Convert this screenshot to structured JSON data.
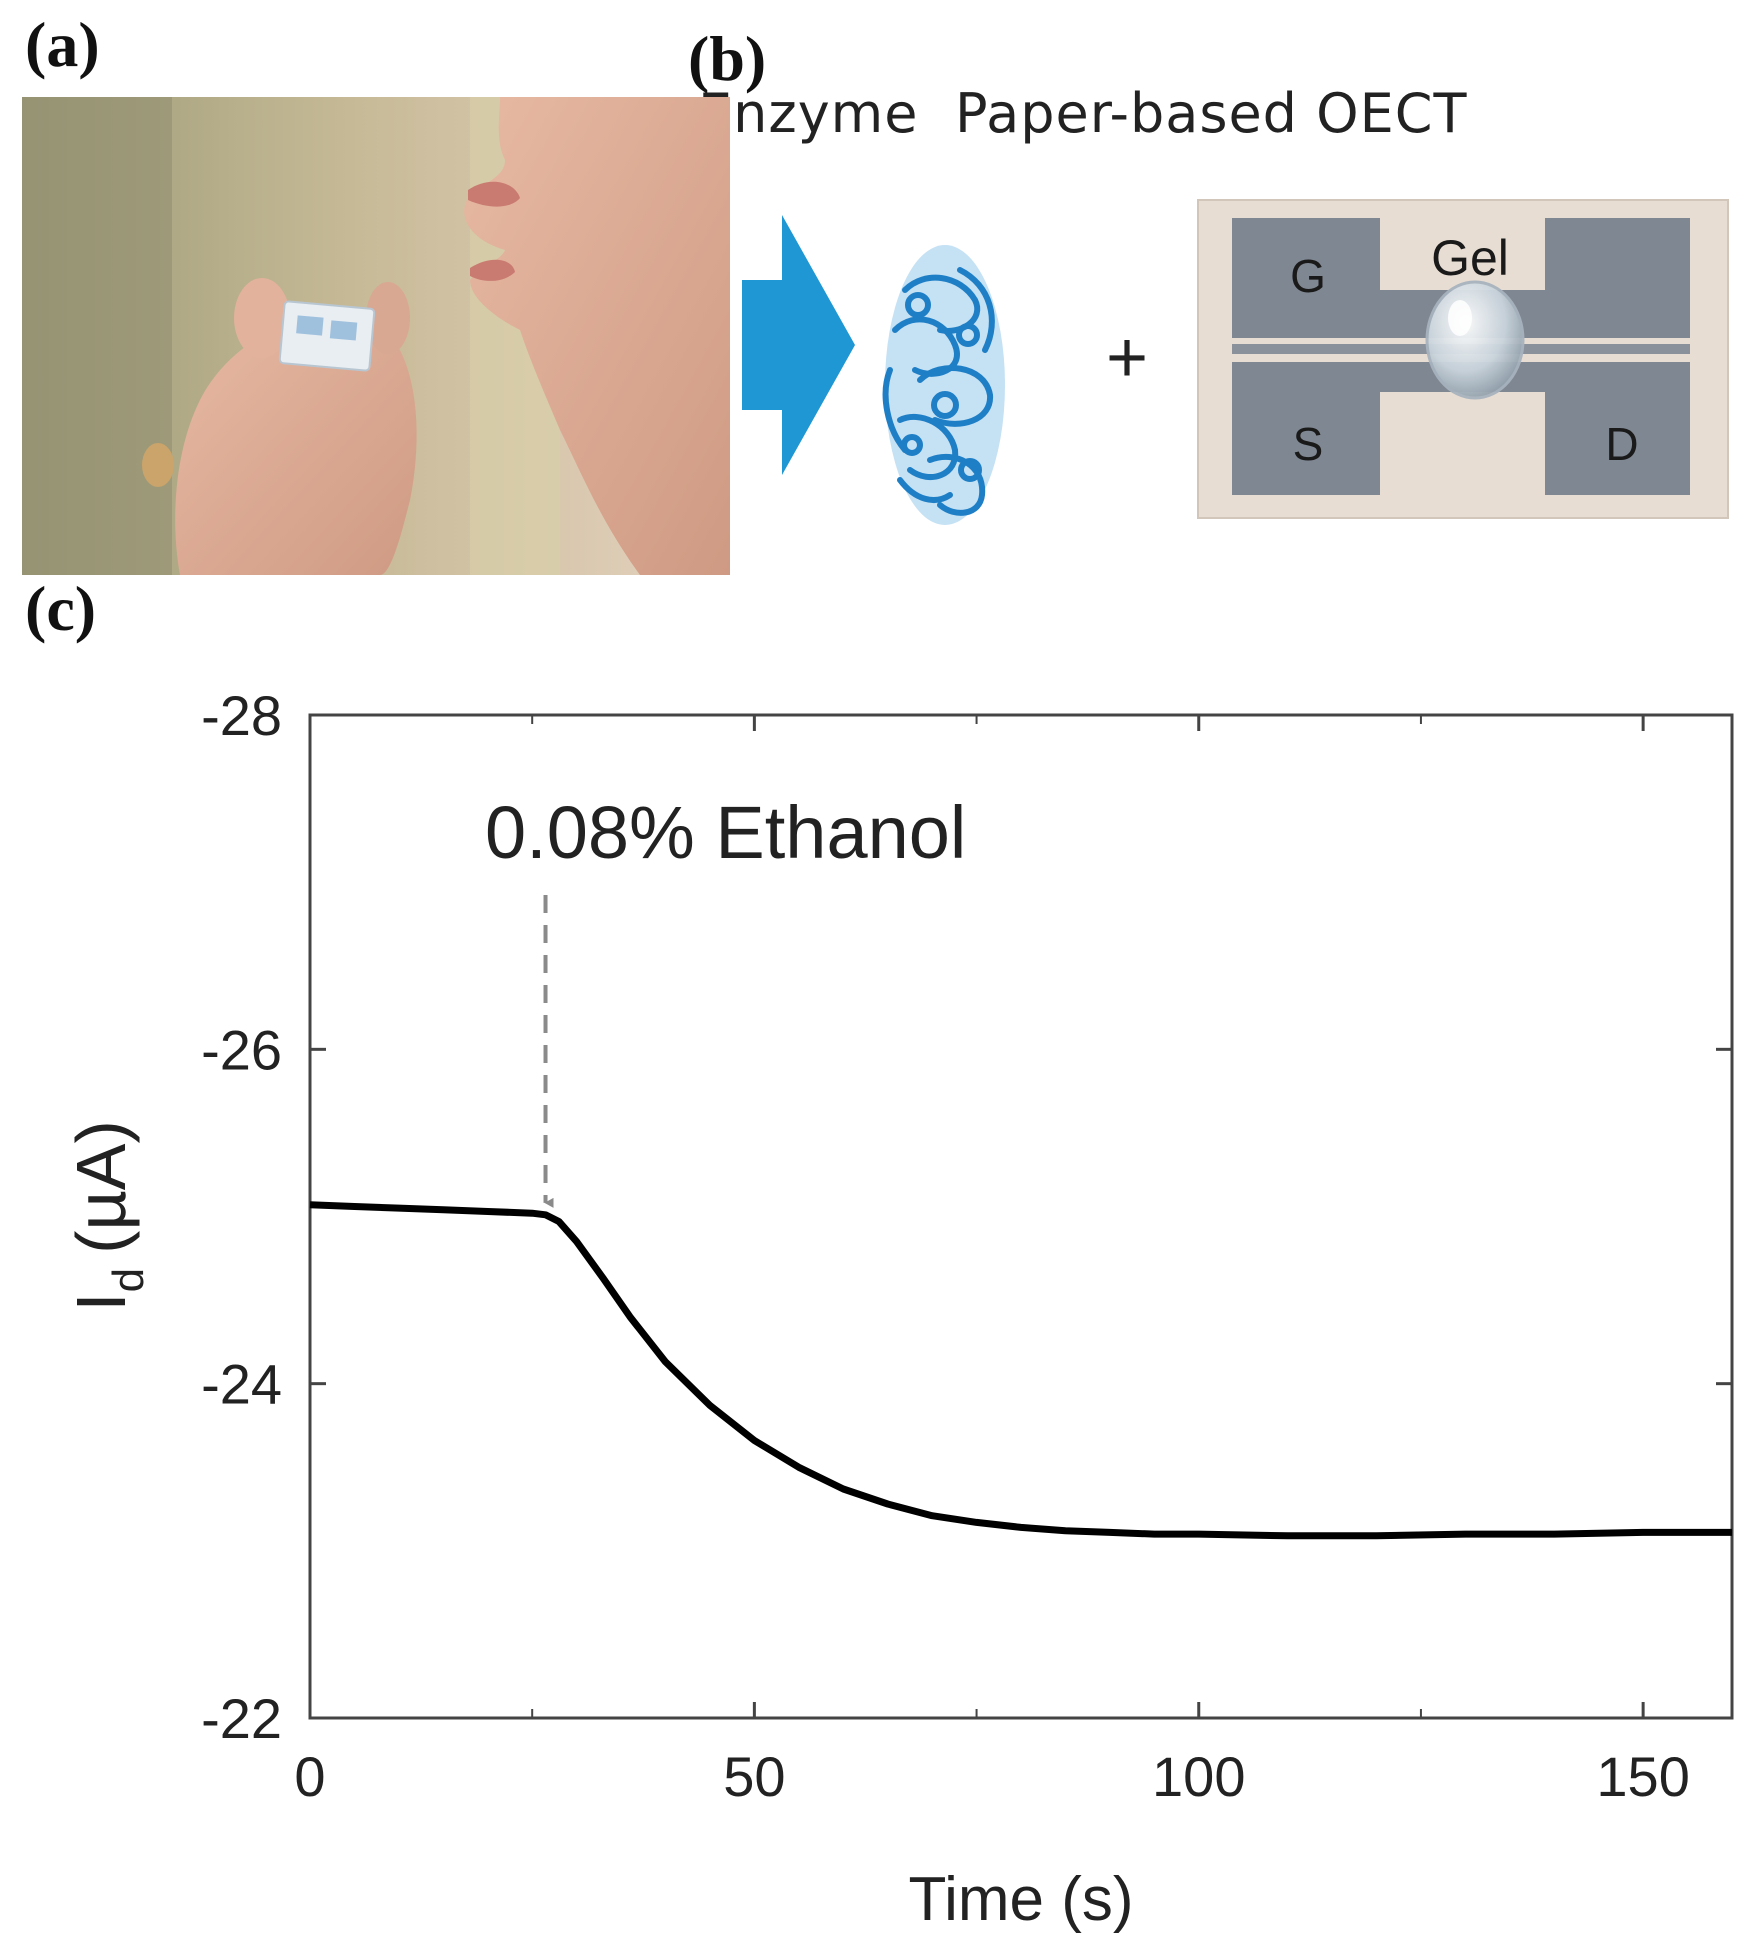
{
  "panels": {
    "a": {
      "label": "(a)"
    },
    "b": {
      "label": "(b)",
      "enzyme_caption": "Enzyme",
      "plus_sign": "+",
      "device_caption": "Paper-based OECT",
      "electrodes": {
        "gate": "G",
        "source": "S",
        "drain": "D",
        "gel": "Gel"
      }
    },
    "c": {
      "label": "(c)"
    }
  },
  "colors": {
    "arrow_blue": "#1e97d4",
    "enzyme_blue": "#1f7fc6",
    "curve": "#000000",
    "annotation_gray": "#8a8a8a",
    "device_bg": "#e8ddd3",
    "electrode_gray": "#7f8792"
  },
  "chart_data": {
    "type": "line",
    "title": "",
    "xlabel": "Time (s)",
    "ylabel_main": "I",
    "ylabel_sub": "d",
    "ylabel_unit": "(µA)",
    "xlim": [
      0,
      160
    ],
    "ylim": [
      -22,
      -28
    ],
    "y_axis_inverted": true,
    "x_ticks": [
      0,
      50,
      100,
      150
    ],
    "x_tick_labels": [
      "0",
      "50",
      "100",
      "150"
    ],
    "y_ticks": [
      -28,
      -26,
      -24,
      -22
    ],
    "y_tick_labels": [
      "-28",
      "-26",
      "-24",
      "-22"
    ],
    "grid": false,
    "annotation": {
      "text": "0.08% Ethanol",
      "x": 26.5
    },
    "series": [
      {
        "name": "Id",
        "x": [
          0,
          5,
          10,
          15,
          20,
          25,
          26.5,
          28,
          30,
          33,
          36,
          40,
          45,
          50,
          55,
          60,
          65,
          70,
          75,
          80,
          85,
          90,
          95,
          100,
          110,
          120,
          130,
          140,
          150,
          160
        ],
        "y": [
          -25.07,
          -25.06,
          -25.05,
          -25.04,
          -25.03,
          -25.02,
          -25.01,
          -24.97,
          -24.85,
          -24.63,
          -24.4,
          -24.13,
          -23.87,
          -23.66,
          -23.5,
          -23.37,
          -23.28,
          -23.21,
          -23.17,
          -23.14,
          -23.12,
          -23.11,
          -23.1,
          -23.1,
          -23.09,
          -23.09,
          -23.1,
          -23.1,
          -23.11,
          -23.11
        ]
      }
    ]
  }
}
